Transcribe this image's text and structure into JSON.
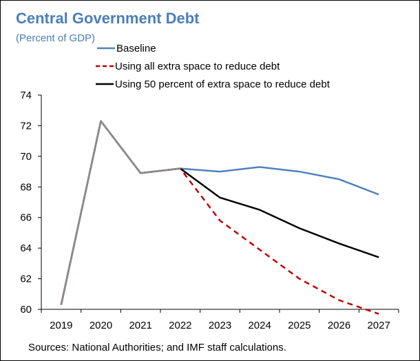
{
  "chart_data": {
    "type": "line",
    "title": "Central Government Debt",
    "subtitle": "(Percent of GDP)",
    "x": [
      "2019",
      "2020",
      "2021",
      "2022",
      "2023",
      "2024",
      "2025",
      "2026",
      "2027"
    ],
    "ylim": [
      60,
      74
    ],
    "yticks": [
      60,
      62,
      64,
      66,
      68,
      70,
      72,
      74
    ],
    "grid": false,
    "legend_position": "top",
    "series": [
      {
        "name": "Baseline",
        "color": "#4f81bd",
        "dash": "solid",
        "values": [
          60.3,
          72.3,
          68.9,
          69.2,
          69.0,
          69.3,
          69.0,
          68.5,
          67.5
        ]
      },
      {
        "name": "Using all extra space to reduce debt",
        "color": "#c00000",
        "dash": "dashed",
        "values": [
          60.3,
          72.3,
          68.9,
          69.2,
          65.8,
          63.9,
          62.0,
          60.6,
          59.7
        ]
      },
      {
        "name": "Using 50 percent of extra space to reduce debt",
        "color": "#000000",
        "dash": "solid",
        "values": [
          60.3,
          72.3,
          68.9,
          69.2,
          67.3,
          66.5,
          65.3,
          64.3,
          63.4
        ]
      }
    ],
    "source": "Sources: National Authorities; and IMF staff calculations."
  }
}
